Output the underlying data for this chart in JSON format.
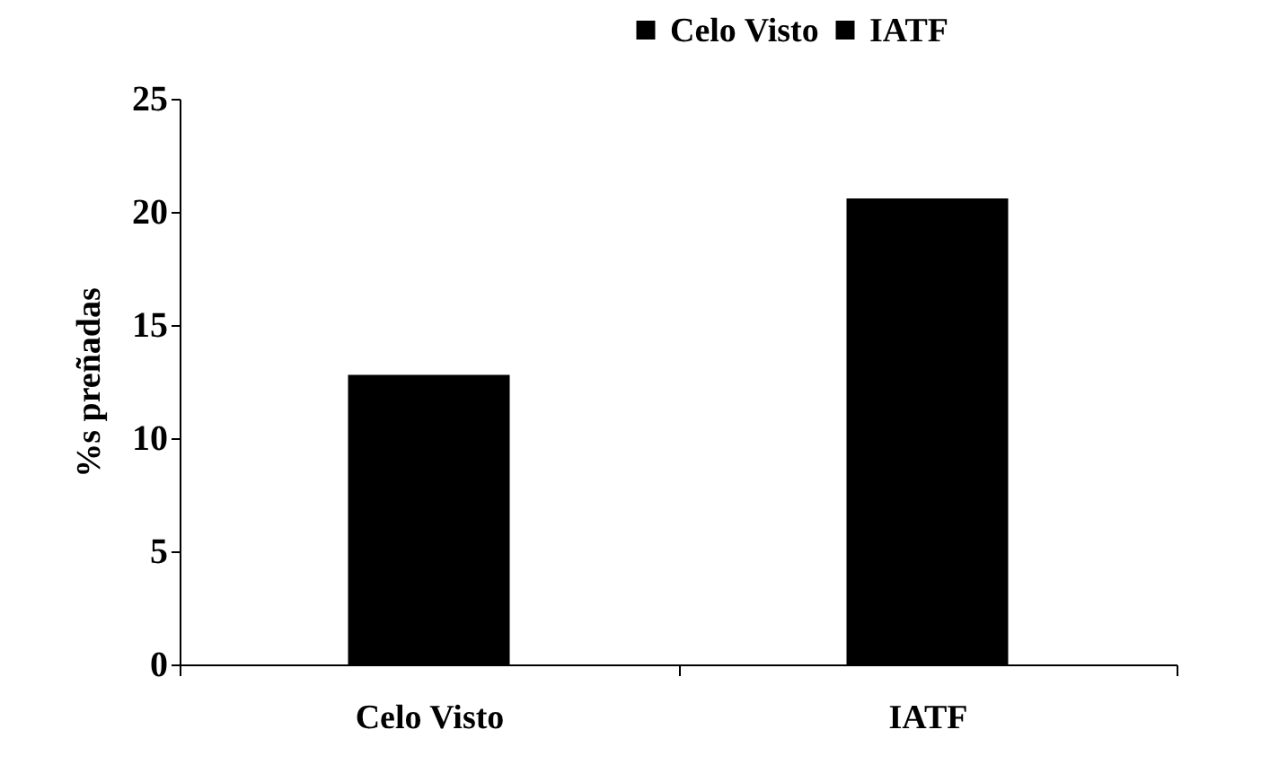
{
  "chart_data": {
    "type": "bar",
    "ylabel": "%s preñadas",
    "categories": [
      "Celo Visto",
      "IATF"
    ],
    "series": [
      {
        "name": "Celo Visto",
        "color": "#000000",
        "values": [
          12.8,
          null
        ]
      },
      {
        "name": "IATF",
        "color": "#000000",
        "values": [
          null,
          20.6
        ]
      }
    ],
    "ylim": [
      0,
      25
    ],
    "yticks": [
      0,
      5,
      10,
      15,
      20,
      25
    ],
    "legend": "top right"
  }
}
